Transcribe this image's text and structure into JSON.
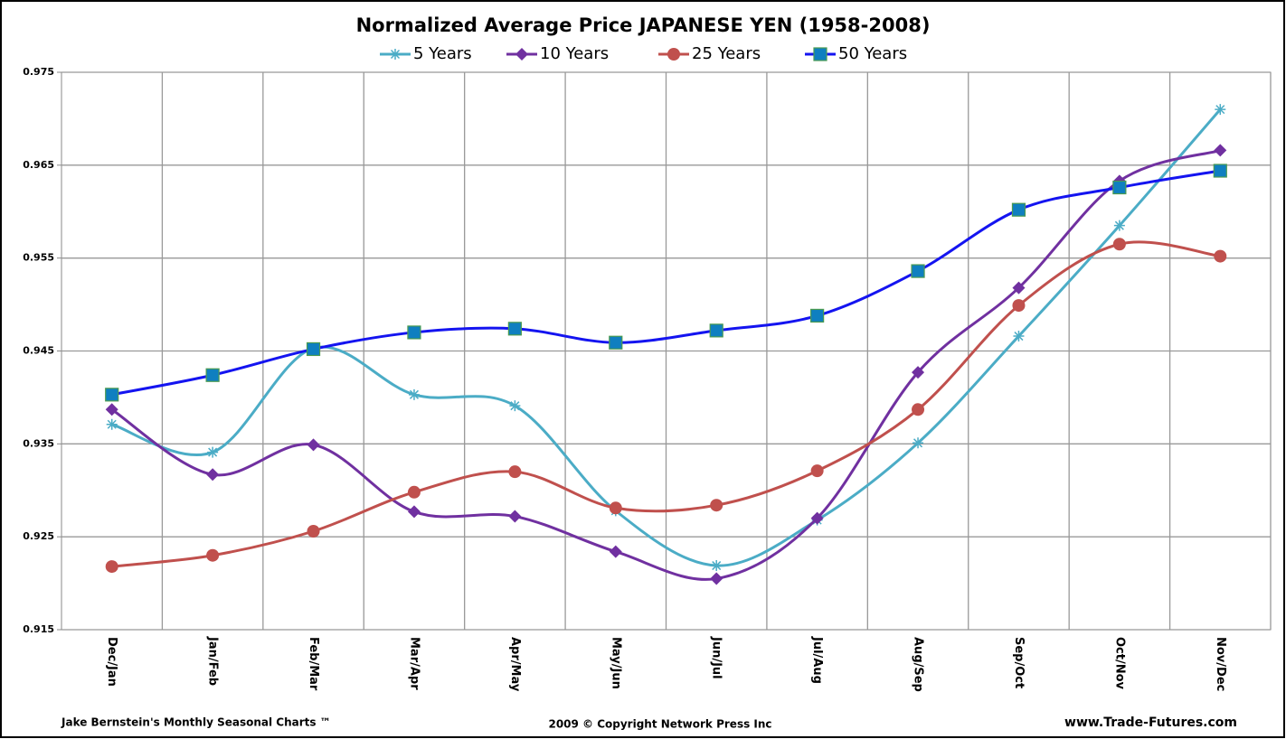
{
  "chart_data": {
    "type": "line",
    "title": "Normalized Average Price JAPANESE YEN (1958-2008)",
    "categories": [
      "Dec/Jan",
      "Jan/Feb",
      "Feb/Mar",
      "Mar/Apr",
      "Apr/May",
      "May/Jun",
      "Jun/Jul",
      "Jul/Aug",
      "Aug/Sep",
      "Sep/Oct",
      "Oct/Nov",
      "Nov/Dec"
    ],
    "series": [
      {
        "name": "5 Years",
        "color": "#4bacc6",
        "marker": "asterisk",
        "values": [
          0.9371,
          0.9341,
          0.9453,
          0.9403,
          0.9391,
          0.9278,
          0.9219,
          0.9268,
          0.9351,
          0.9466,
          0.9585,
          0.971
        ]
      },
      {
        "name": "10 Years",
        "color": "#7030a0",
        "marker": "diamond",
        "values": [
          0.9387,
          0.9317,
          0.9349,
          0.9277,
          0.9272,
          0.9234,
          0.9205,
          0.927,
          0.9427,
          0.9518,
          0.9633,
          0.9666
        ]
      },
      {
        "name": "25 Years",
        "color": "#c0504d",
        "marker": "circle",
        "values": [
          0.9218,
          0.923,
          0.9256,
          0.9298,
          0.932,
          0.9281,
          0.9284,
          0.9321,
          0.9387,
          0.9499,
          0.9565,
          0.9552
        ]
      },
      {
        "name": "50 Years",
        "color": "#1414f0",
        "marker": "square",
        "values": [
          0.9403,
          0.9424,
          0.9452,
          0.947,
          0.9474,
          0.9459,
          0.9472,
          0.9488,
          0.9536,
          0.9602,
          0.9626,
          0.9644
        ]
      }
    ],
    "ylim": [
      0.915,
      0.975
    ],
    "yticks": [
      0.915,
      0.925,
      0.935,
      0.945,
      0.955,
      0.965,
      0.975
    ],
    "grid": true,
    "legend": "top",
    "footer_left": "Jake Bernstein's  Monthly Seasonal  Charts ™",
    "footer_center": "2009  © Copyright Network Press Inc",
    "footer_right": "www.Trade-Futures.com"
  }
}
